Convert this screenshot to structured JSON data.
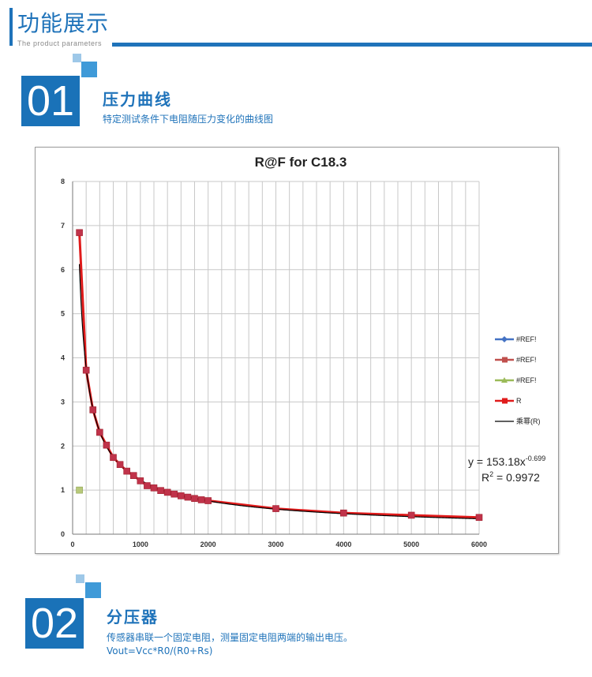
{
  "header": {
    "title": "功能展示",
    "subtitle": "The product parameters"
  },
  "sections": [
    {
      "number": "01",
      "title": "压力曲线",
      "desc": "特定测试条件下电阻随压力变化的曲线图"
    },
    {
      "number": "02",
      "title": "分压器",
      "desc": "传感器串联一个固定电阻，测量固定电阻两端的输出电压。",
      "formula": "Vout=Vcc*R0/(R0+Rs)"
    }
  ],
  "colors": {
    "accent": "#1f73ba",
    "r_series": "#e01b1b",
    "r_marker": "#c0334a",
    "fit": "#000000"
  },
  "chart_data": {
    "type": "scatter",
    "title": "R@F  for C18.3",
    "xlim": [
      0,
      6000
    ],
    "ylim": [
      0,
      8
    ],
    "x_ticks": [
      0,
      1000,
      2000,
      3000,
      4000,
      5000,
      6000
    ],
    "y_ticks": [
      0,
      1,
      2,
      3,
      4,
      5,
      6,
      7,
      8
    ],
    "grid": true,
    "legend_position": "right",
    "series": [
      {
        "name": "#REF!",
        "color": "#4472c4",
        "marker": "diamond",
        "x": [],
        "y": []
      },
      {
        "name": "#REF!",
        "color": "#c0504d",
        "marker": "square",
        "x": [],
        "y": []
      },
      {
        "name": "#REF!",
        "color": "#9bbb59",
        "marker": "triangle",
        "x": [
          100
        ],
        "y": [
          1.0
        ]
      },
      {
        "name": "R",
        "color": "#e01b1b",
        "marker": "square",
        "x": [
          100,
          200,
          300,
          400,
          500,
          600,
          700,
          800,
          900,
          1000,
          1100,
          1200,
          1300,
          1400,
          1500,
          1600,
          1700,
          1800,
          1900,
          2000,
          3000,
          4000,
          5000,
          6000
        ],
        "y": [
          6.84,
          3.72,
          2.82,
          2.31,
          2.02,
          1.74,
          1.58,
          1.43,
          1.33,
          1.21,
          1.1,
          1.05,
          0.99,
          0.95,
          0.91,
          0.87,
          0.84,
          0.81,
          0.78,
          0.76,
          0.58,
          0.48,
          0.43,
          0.38
        ]
      }
    ],
    "trendline": {
      "name": "乘幂(R)",
      "type": "power",
      "a": 153.18,
      "b": -0.699,
      "equation": "y = 153.18x",
      "exponent": "-0.699",
      "r2_label": "R",
      "r2_value": " = 0.9972"
    }
  }
}
